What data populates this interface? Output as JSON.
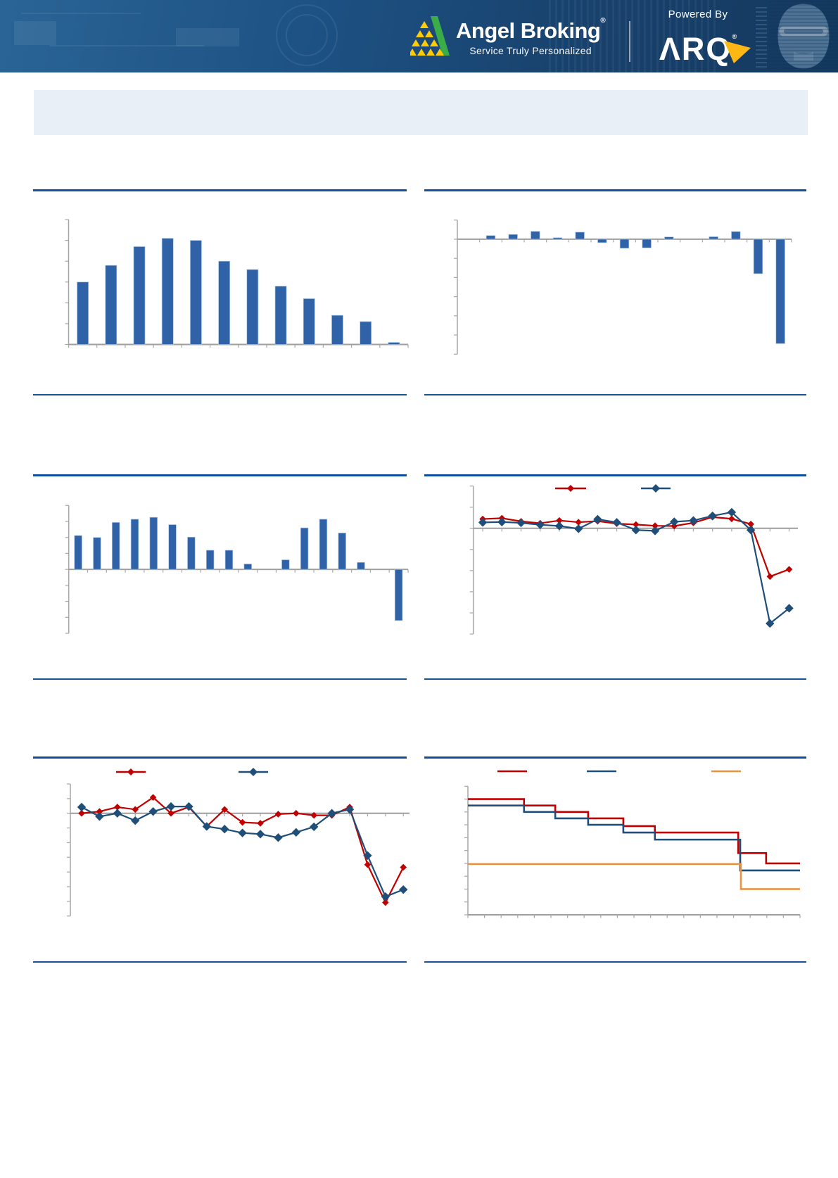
{
  "header": {
    "brand": "Angel Broking",
    "registered_mark": "®",
    "tagline": "Service Truly Personalized",
    "powered_by": "Powered By",
    "arq": "ΛRQ",
    "arq_registered": "®",
    "colors": {
      "band_left": "#2a6496",
      "band_right": "#14395f",
      "logo_yellow": "#ffcb05",
      "logo_green": "#3aad49",
      "bolt_yellow": "#fdb813",
      "text_white": "#ffffff"
    }
  },
  "title_box": {
    "text": ""
  },
  "page": {
    "divider_thick_color": "#0f4fa0",
    "divider_thin_color": "#1a5494",
    "axis_color": "#a6a6a6"
  },
  "chart_data": [
    {
      "id": "volume-history-bars",
      "type": "bar",
      "title": "",
      "xlabel": "",
      "ylabel": "",
      "axis_labels_visible": false,
      "xtick_labels": [],
      "values": [
        3.0,
        3.8,
        4.7,
        5.1,
        5.0,
        4.0,
        3.6,
        2.8,
        2.2,
        1.4,
        1.1,
        0.1
      ],
      "ylim": [
        0,
        6
      ],
      "ytick_step": 1,
      "bar_color": "#2f62a7"
    },
    {
      "id": "growth-bars-crash",
      "type": "bar",
      "title": "",
      "xlabel": "",
      "ylabel": "",
      "axis_labels_visible": false,
      "xtick_labels": [],
      "values": [
        0,
        1.9,
        2.5,
        4.1,
        0.8,
        3.7,
        -1.8,
        -4.7,
        -4.5,
        1.2,
        0,
        1.3,
        4.0,
        -18,
        -54.5
      ],
      "ylim": [
        -60,
        10
      ],
      "ytick_step": 10,
      "bar_color": "#2f62a7"
    },
    {
      "id": "quarterly-margin-bars",
      "type": "bar",
      "title": "",
      "xlabel": "",
      "ylabel": "",
      "axis_labels_visible": false,
      "xtick_labels": [],
      "values": [
        10.6,
        10,
        14.7,
        15.7,
        16.3,
        14,
        10.1,
        6,
        6,
        1.7,
        0,
        3,
        13,
        15.7,
        11.4,
        2.2,
        0,
        -16
      ],
      "ylim": [
        -20,
        20
      ],
      "ytick_step": 5,
      "bar_color": "#2f62a7"
    },
    {
      "id": "growth-lines-two-series",
      "type": "line",
      "title": "",
      "xlabel": "",
      "ylabel": "",
      "axis_labels_visible": false,
      "legend_labels_visible": false,
      "ylim": [
        -50,
        20
      ],
      "ytick_step": 10,
      "series": [
        {
          "name": "series-red",
          "label": "",
          "color": "#c00000",
          "values": [
            4.4,
            4.8,
            3.3,
            2.4,
            3.7,
            2.9,
            3.4,
            2.2,
            1.8,
            1.2,
            1.1,
            2.6,
            5.3,
            4.5,
            2.0,
            -22.8,
            -19.4
          ]
        },
        {
          "name": "series-blue",
          "label": "",
          "color": "#1f4e79",
          "values": [
            2.8,
            3.0,
            2.6,
            1.7,
            1.1,
            -0.2,
            4.3,
            2.8,
            -0.8,
            -1.2,
            3.1,
            3.7,
            5.9,
            7.6,
            -0.8,
            -45.0,
            -37.8
          ]
        }
      ]
    },
    {
      "id": "volume-growth-lines",
      "type": "line",
      "title": "",
      "xlabel": "",
      "ylabel": "",
      "axis_labels_visible": false,
      "legend_labels_visible": false,
      "ylim": [
        -35,
        10
      ],
      "ytick_step": 5,
      "series": [
        {
          "name": "series-red",
          "label": "",
          "color": "#c00000",
          "values": [
            0,
            0.6,
            2.1,
            1.3,
            5.4,
            0,
            2.1,
            -4.5,
            1.3,
            -3.1,
            -3.4,
            -0.3,
            0,
            -0.7,
            -0.7,
            2.1,
            -17.5,
            -30.4,
            -18.4
          ]
        },
        {
          "name": "series-blue",
          "label": "",
          "color": "#1f4e79",
          "values": [
            2.1,
            -1.1,
            0,
            -2.5,
            0.6,
            2.3,
            2.3,
            -4.5,
            -5.4,
            -6.7,
            -7.1,
            -8.3,
            -6.5,
            -4.6,
            0,
            1.3,
            -14.4,
            -28.4,
            -26.0
          ]
        }
      ]
    },
    {
      "id": "estimate-step-lines",
      "type": "step",
      "title": "",
      "xlabel": "",
      "ylabel": "",
      "axis_labels_visible": false,
      "legend_labels_visible": false,
      "ylim": [
        0,
        10
      ],
      "ytick_step": 1,
      "series": [
        {
          "name": "step-red",
          "label": "",
          "color": "#c00000",
          "edges": [
            0,
            0.169,
            0.263,
            0.362,
            0.468,
            0.563,
            0.814,
            0.898,
            1
          ],
          "values": [
            9.0,
            8.5,
            8.0,
            7.5,
            6.9,
            6.4,
            4.8,
            4.0
          ]
        },
        {
          "name": "step-blue",
          "label": "",
          "color": "#1f4e79",
          "edges": [
            0,
            0.169,
            0.263,
            0.362,
            0.468,
            0.563,
            0.82,
            1
          ],
          "values": [
            8.5,
            8.0,
            7.5,
            7.0,
            6.4,
            5.85,
            3.45
          ]
        },
        {
          "name": "step-orange",
          "label": "",
          "color": "#e8943e",
          "edges": [
            0,
            0.822,
            1
          ],
          "values": [
            3.95,
            2.0
          ]
        }
      ]
    }
  ]
}
